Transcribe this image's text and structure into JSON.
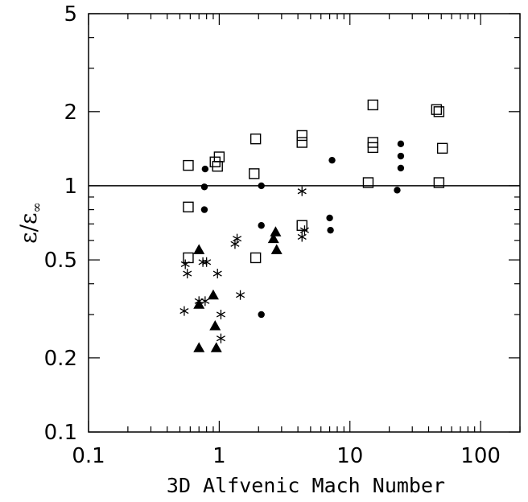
{
  "chart_data": {
    "type": "scatter",
    "xlabel": "3D Alfvenic Mach Number",
    "ylabel": {
      "main": "ε",
      "sep": "/",
      "denom": "ε",
      "sub": "∞"
    },
    "xscale": "log",
    "yscale": "log",
    "xlim": [
      0.1,
      200
    ],
    "ylim": [
      0.1,
      5
    ],
    "xticks": [
      {
        "v": 0.1,
        "label": "0.1"
      },
      {
        "v": 1,
        "label": "1"
      },
      {
        "v": 10,
        "label": "10"
      },
      {
        "v": 100,
        "label": "100"
      }
    ],
    "yticks": [
      {
        "v": 0.1,
        "label": "0.1"
      },
      {
        "v": 0.2,
        "label": "0.2"
      },
      {
        "v": 0.5,
        "label": "0.5"
      },
      {
        "v": 1,
        "label": "1"
      },
      {
        "v": 2,
        "label": "2"
      },
      {
        "v": 5,
        "label": "5"
      }
    ],
    "reference_line": {
      "y": 1
    },
    "series": [
      {
        "marker": "open-square",
        "points": [
          [
            0.58,
            1.21
          ],
          [
            0.58,
            0.82
          ],
          [
            0.58,
            0.51
          ],
          [
            0.93,
            1.25
          ],
          [
            0.97,
            1.2
          ],
          [
            1.0,
            1.31
          ],
          [
            1.85,
            1.12
          ],
          [
            1.9,
            1.55
          ],
          [
            1.9,
            0.51
          ],
          [
            4.3,
            1.6
          ],
          [
            4.3,
            1.5
          ],
          [
            4.3,
            0.69
          ],
          [
            13.8,
            1.03
          ],
          [
            15.0,
            2.13
          ],
          [
            15.0,
            1.5
          ],
          [
            15.0,
            1.43
          ],
          [
            46,
            2.04
          ],
          [
            48,
            2.0
          ],
          [
            48,
            1.03
          ],
          [
            51,
            1.42
          ]
        ]
      },
      {
        "marker": "filled-circle",
        "points": [
          [
            0.78,
            1.17
          ],
          [
            0.77,
            0.99
          ],
          [
            0.77,
            0.8
          ],
          [
            2.1,
            1.0
          ],
          [
            2.1,
            0.69
          ],
          [
            2.1,
            0.3
          ],
          [
            7.3,
            1.27
          ],
          [
            7.0,
            0.74
          ],
          [
            7.1,
            0.66
          ],
          [
            23,
            0.96
          ],
          [
            24.5,
            1.48
          ],
          [
            24.5,
            1.32
          ],
          [
            24.5,
            1.18
          ]
        ]
      },
      {
        "marker": "asterisk",
        "points": [
          [
            0.55,
            0.48
          ],
          [
            0.57,
            0.44
          ],
          [
            0.54,
            0.31
          ],
          [
            0.7,
            0.34
          ],
          [
            0.75,
            0.49
          ],
          [
            0.8,
            0.49
          ],
          [
            0.78,
            0.34
          ],
          [
            0.97,
            0.44
          ],
          [
            1.03,
            0.3
          ],
          [
            1.03,
            0.24
          ],
          [
            1.32,
            0.58
          ],
          [
            1.37,
            0.61
          ],
          [
            1.45,
            0.36
          ],
          [
            4.3,
            0.95
          ],
          [
            4.3,
            0.62
          ],
          [
            4.5,
            0.66
          ]
        ]
      },
      {
        "marker": "filled-triangle",
        "points": [
          [
            0.7,
            0.55
          ],
          [
            0.7,
            0.33
          ],
          [
            0.7,
            0.22
          ],
          [
            0.9,
            0.36
          ],
          [
            0.93,
            0.27
          ],
          [
            0.95,
            0.22
          ],
          [
            2.6,
            0.61
          ],
          [
            2.7,
            0.65
          ],
          [
            2.75,
            0.55
          ]
        ]
      }
    ]
  }
}
